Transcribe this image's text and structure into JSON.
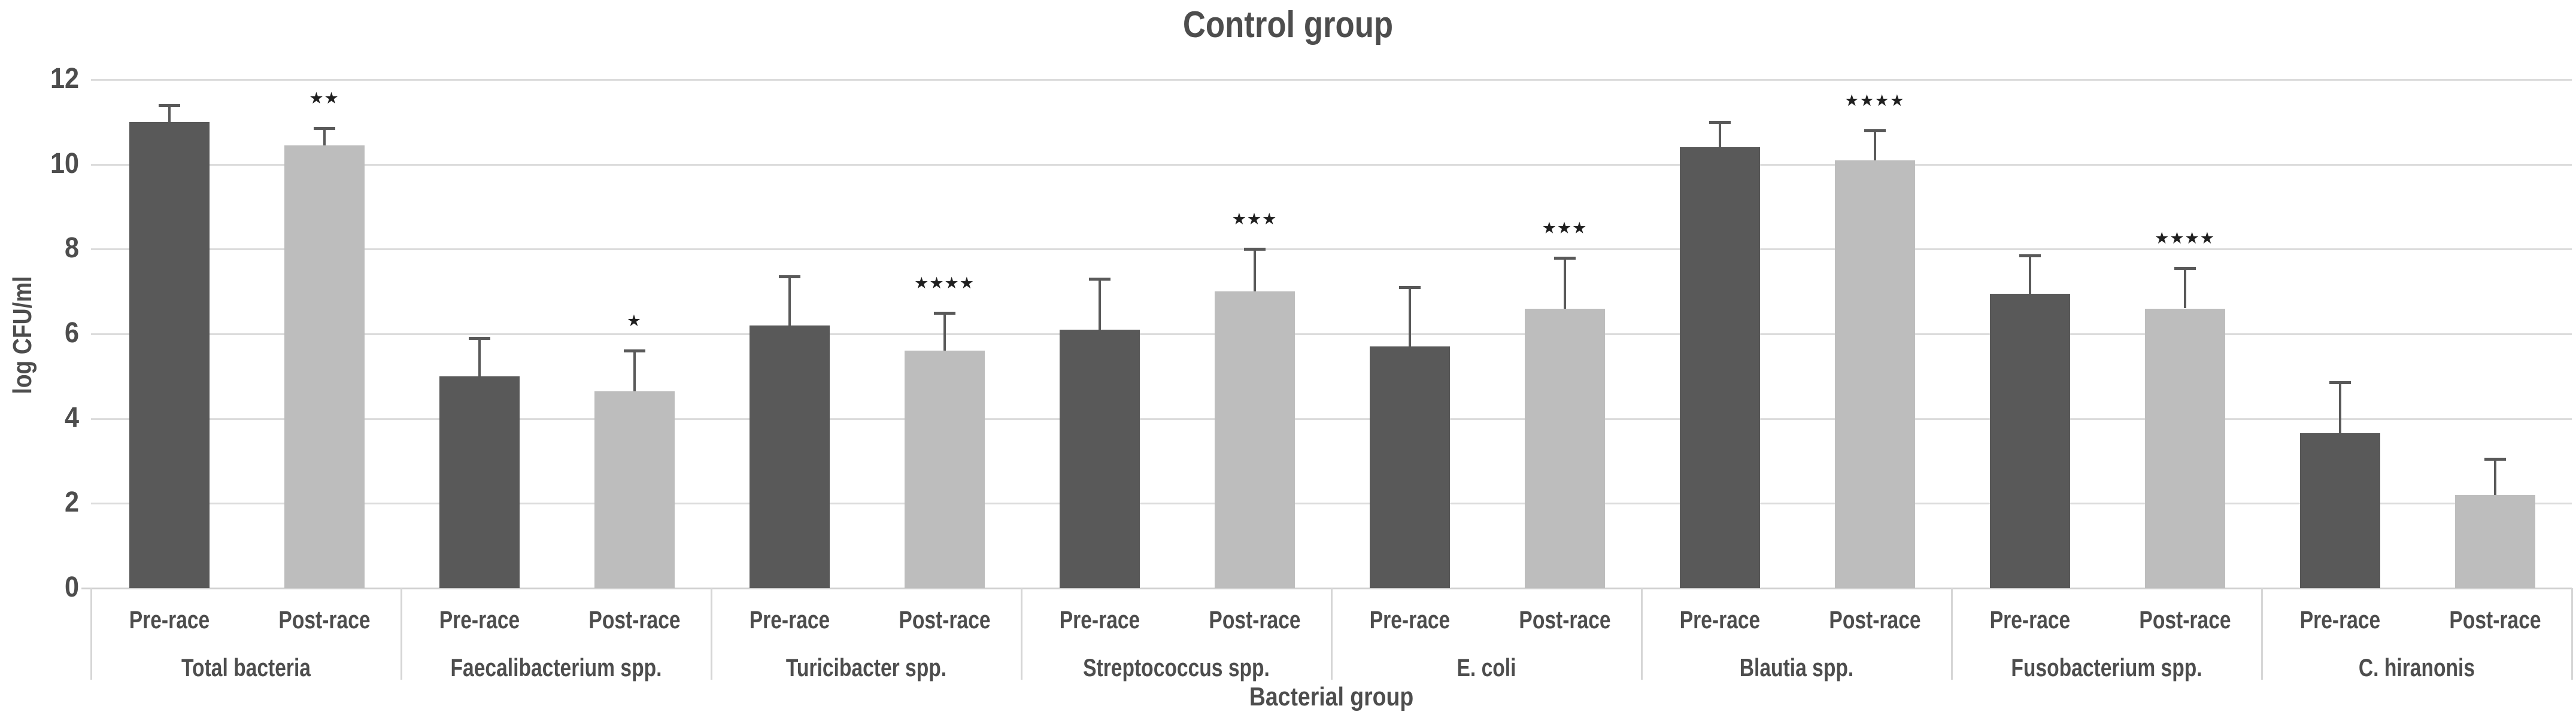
{
  "title": "Control group",
  "y_axis": {
    "label": "log CFU/ml",
    "ticks": [
      0,
      2,
      4,
      6,
      8,
      10,
      12
    ],
    "min": 0,
    "max": 12
  },
  "x_axis": {
    "label": "Bacterial group"
  },
  "colors": {
    "pre_bar": "#595959",
    "post_bar": "#bdbdbd",
    "gridline": "#dcdcdc",
    "axis_line": "#cfcfcf",
    "divider": "#d6d6d6",
    "error_bar": "#595959",
    "text": "#4d4d4d",
    "stars": "#1f1f1f",
    "background": "#ffffff"
  },
  "chart_data": {
    "type": "bar",
    "title": "Control group",
    "xlabel": "Bacterial group",
    "ylabel": "log CFU/ml",
    "ylim": [
      0,
      12
    ],
    "grid": true,
    "legend_position": "none",
    "categories": [
      "Total bacteria",
      "Faecalibacterium spp.",
      "Turicibacter spp.",
      "Streptococcus spp.",
      "E. coli",
      "Blautia spp.",
      "Fusobacterium spp.",
      "C. hiranonis"
    ],
    "sub_categories": [
      "Pre-race",
      "Post-race"
    ],
    "series": [
      {
        "name": "Pre-race",
        "values": [
          11.0,
          5.0,
          6.2,
          6.1,
          5.7,
          10.4,
          6.95,
          3.65
        ],
        "error_tops": [
          11.4,
          5.9,
          7.35,
          7.3,
          7.1,
          11.0,
          7.85,
          4.85
        ]
      },
      {
        "name": "Post-race",
        "values": [
          10.45,
          4.65,
          5.6,
          7.0,
          6.6,
          10.1,
          6.6,
          2.2
        ],
        "error_tops": [
          10.85,
          5.6,
          6.5,
          8.0,
          7.8,
          10.8,
          7.55,
          3.05
        ],
        "significance": [
          "**",
          "*",
          "****",
          "***",
          "***",
          "****",
          "****",
          ""
        ]
      }
    ],
    "significance_symbol": "star",
    "error_bars": "upper-only"
  }
}
